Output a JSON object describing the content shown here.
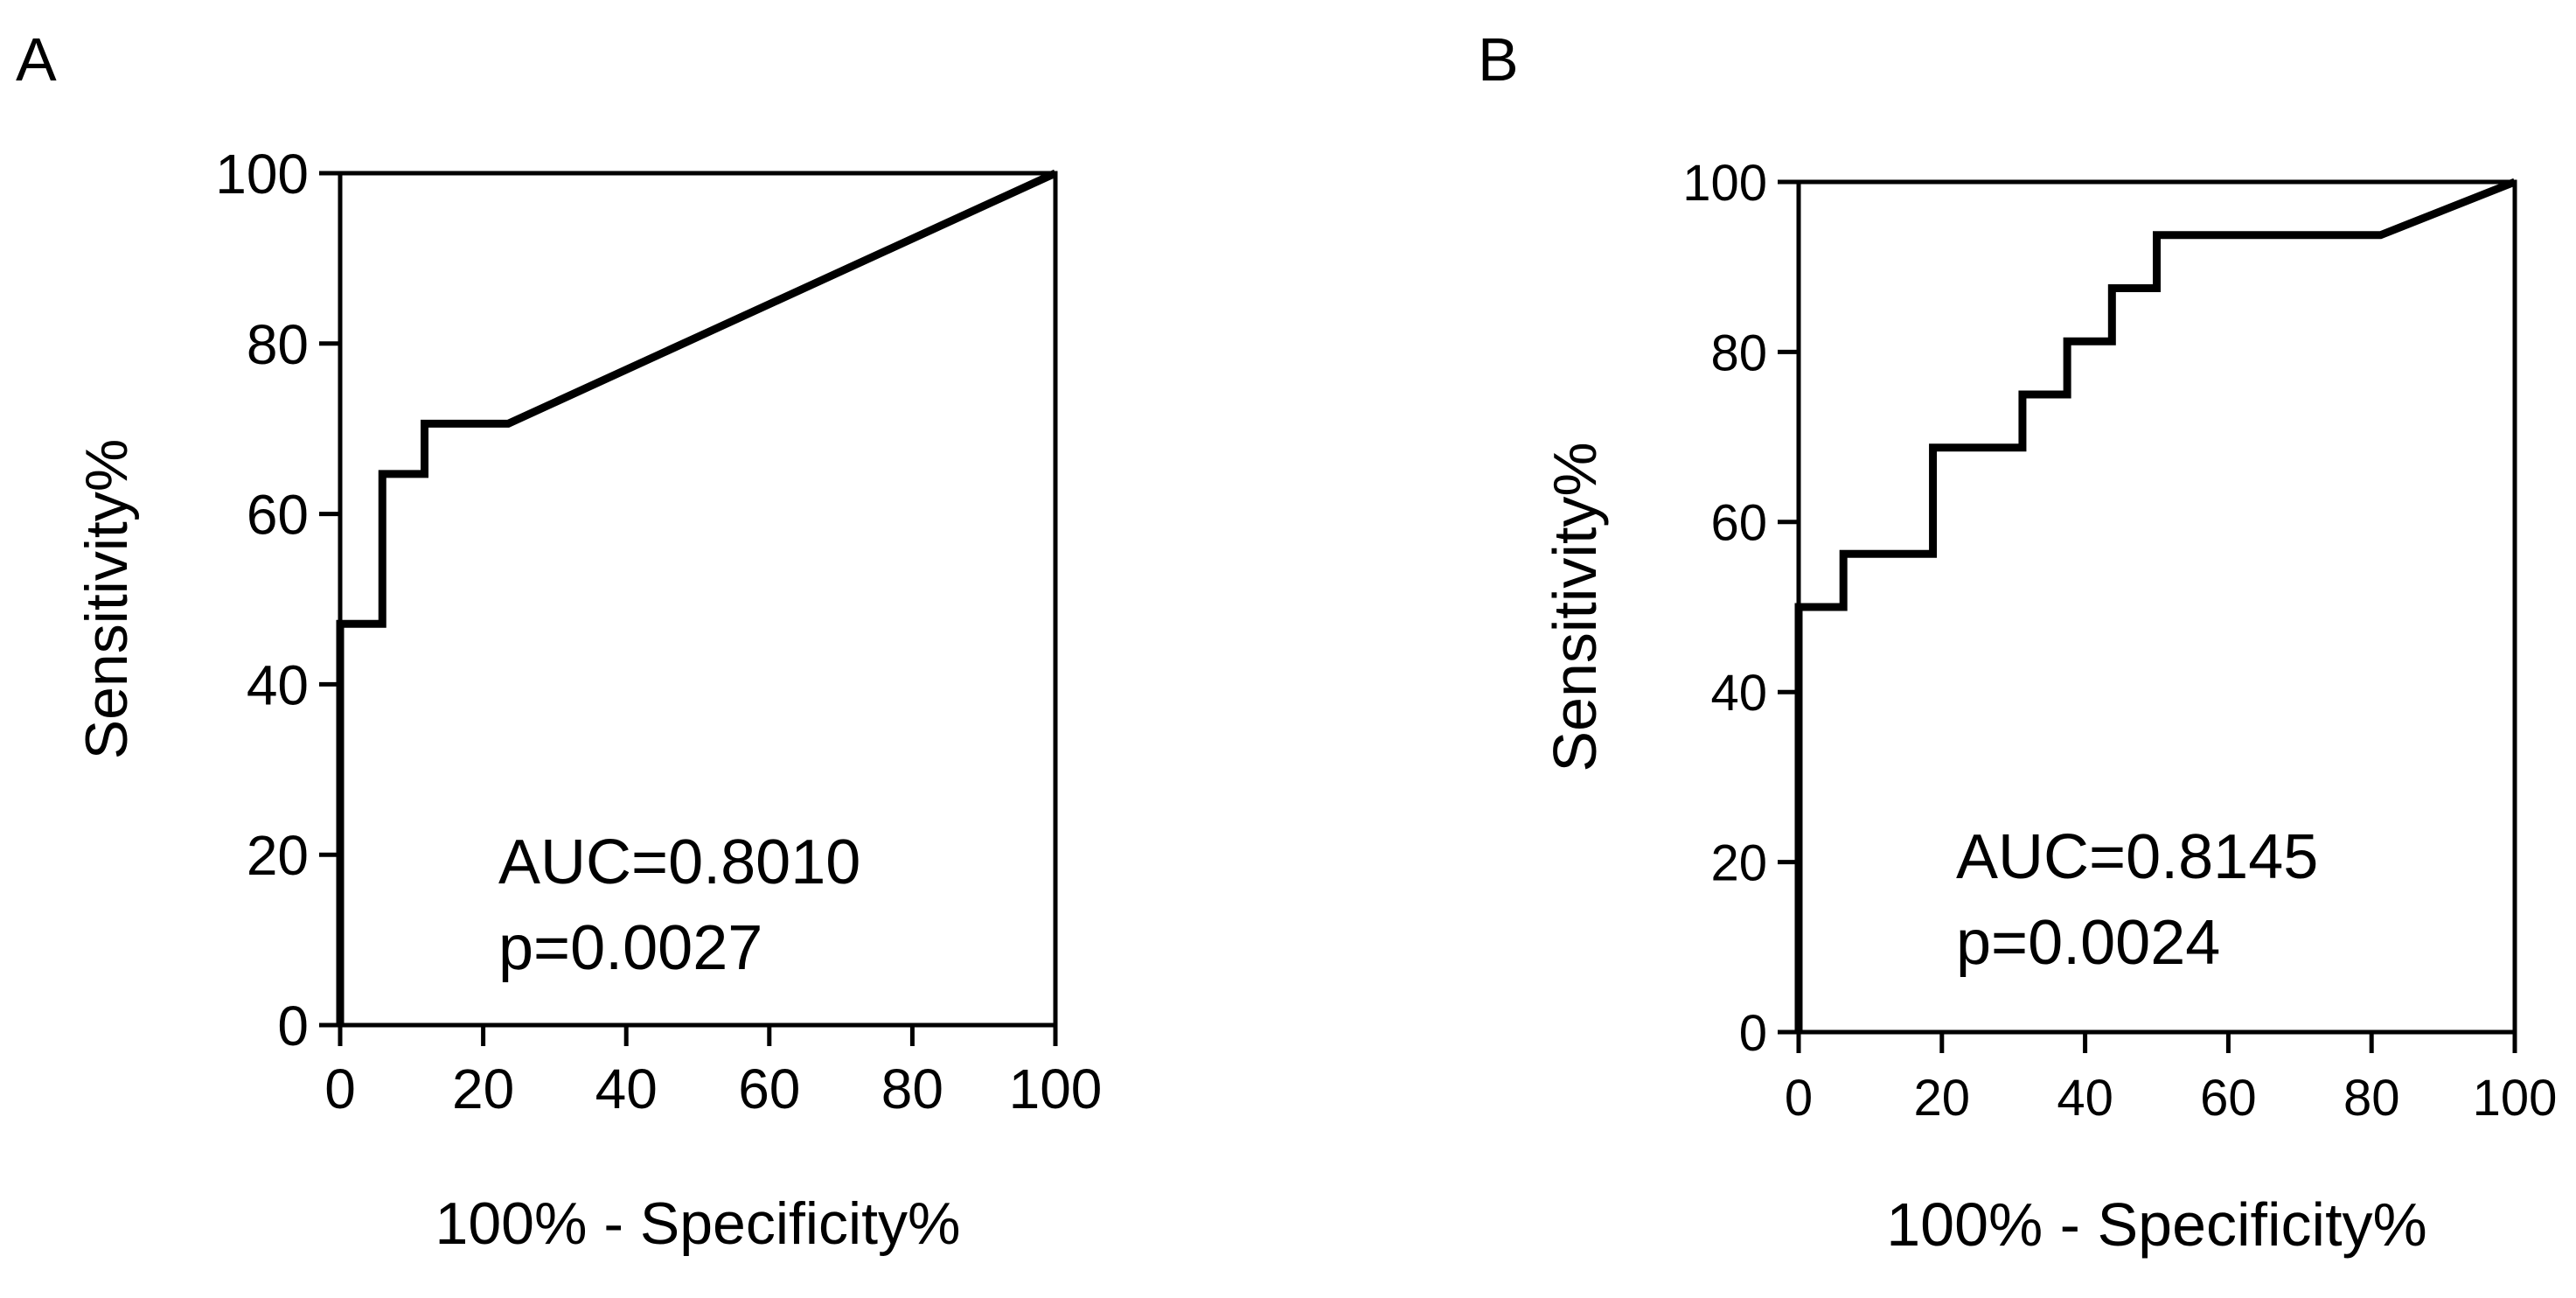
{
  "chart_data": [
    {
      "type": "line",
      "panel": "A",
      "title": "",
      "xlabel": "100% - Specificity%",
      "ylabel": "Sensitivity%",
      "xlim": [
        0,
        100
      ],
      "ylim": [
        0,
        100
      ],
      "xticks": [
        0,
        20,
        40,
        60,
        80,
        100
      ],
      "yticks": [
        0,
        20,
        40,
        60,
        80,
        100
      ],
      "grid": false,
      "series": [
        {
          "name": "ROC",
          "x": [
            0,
            0,
            5.9,
            5.9,
            11.8,
            11.8,
            23.5,
            100
          ],
          "y": [
            0,
            47.1,
            47.1,
            64.7,
            64.7,
            70.6,
            70.6,
            100
          ]
        }
      ],
      "annotations": [
        "AUC=0.8010",
        "p=0.0027"
      ]
    },
    {
      "type": "line",
      "panel": "B",
      "title": "",
      "xlabel": "100% - Specificity%",
      "ylabel": "Sensitivity%",
      "xlim": [
        0,
        100
      ],
      "ylim": [
        0,
        100
      ],
      "xticks": [
        0,
        20,
        40,
        60,
        80,
        100
      ],
      "yticks": [
        0,
        20,
        40,
        60,
        80,
        100
      ],
      "grid": false,
      "series": [
        {
          "name": "ROC",
          "x": [
            0,
            0,
            6.25,
            6.25,
            18.75,
            18.75,
            31.25,
            31.25,
            37.5,
            37.5,
            43.75,
            43.75,
            50,
            50,
            81.25,
            100
          ],
          "y": [
            0,
            50,
            50,
            56.25,
            56.25,
            68.75,
            68.75,
            75,
            75,
            81.25,
            81.25,
            87.5,
            87.5,
            93.75,
            93.75,
            100
          ]
        }
      ],
      "annotations": [
        "AUC=0.8145",
        "p=0.0024"
      ]
    }
  ]
}
